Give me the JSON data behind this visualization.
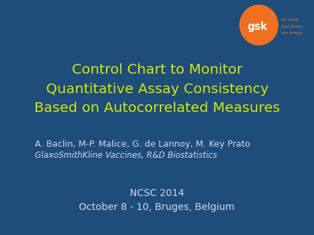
{
  "bg_color": "#1e4d7b",
  "title_lines": [
    "Control Chart to Monitor",
    "Quantitative Assay Consistency",
    "Based on Autocorrelated Measures"
  ],
  "title_color": "#d4e800",
  "title_fontsize": 14.5,
  "author_line": "A. Baclin, M-P. Malice, G. de Lannoy, M. Key Prato",
  "author_color": "#d0d8e8",
  "author_fontsize": 9.0,
  "affil_line": "GlaxoSmithKline Vaccines, R&D Biostatistics",
  "affil_color": "#d0d8e8",
  "affil_fontsize": 8.5,
  "conf_line1": "NCSC 2014",
  "conf_line2": "October 8 - 10, Bruges, Belgium",
  "conf_color": "#d0d8e8",
  "conf_fontsize": 10.0,
  "gsk_orange": "#f07020",
  "gsk_tagline": [
    "do more",
    "feel better",
    "live longer"
  ]
}
